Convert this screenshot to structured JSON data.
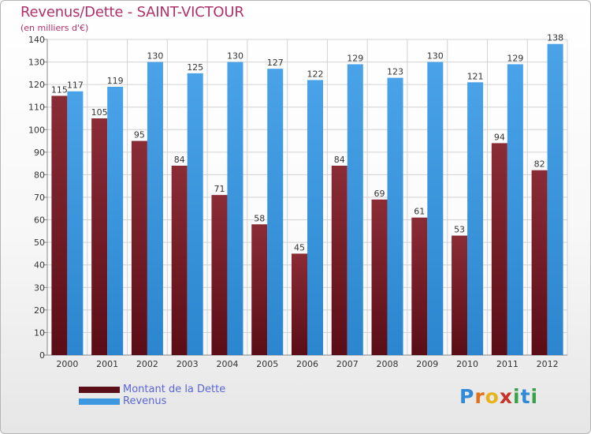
{
  "header": {
    "title": "Revenus/Dette - SAINT-VICTOUR",
    "subtitle": "(en milliers d'€)"
  },
  "chart_data": {
    "type": "bar",
    "title": "Revenus/Dette - SAINT-VICTOUR",
    "subtitle": "(en milliers d'€)",
    "categories": [
      "2000",
      "2001",
      "2002",
      "2003",
      "2004",
      "2005",
      "2006",
      "2007",
      "2008",
      "2009",
      "2010",
      "2011",
      "2012"
    ],
    "series": [
      {
        "name": "Montant de la Dette",
        "color": "#7a1f2a",
        "values": [
          115,
          105,
          95,
          84,
          71,
          58,
          45,
          84,
          69,
          61,
          53,
          94,
          82
        ]
      },
      {
        "name": "Revenus",
        "color": "#3d98e0",
        "values": [
          117,
          119,
          130,
          125,
          130,
          127,
          122,
          129,
          123,
          130,
          121,
          129,
          138
        ]
      }
    ],
    "ylim": [
      0,
      140
    ],
    "yticks": [
      0,
      10,
      20,
      30,
      40,
      50,
      60,
      70,
      80,
      90,
      100,
      110,
      120,
      130,
      140
    ],
    "grid": true,
    "legend_position": "bottom-left"
  },
  "legend": {
    "items": [
      {
        "label": "Montant de la Dette",
        "color": "#5a0f18"
      },
      {
        "label": "Revenus",
        "color": "#3d98e0"
      }
    ]
  },
  "logo": {
    "letters": [
      "P",
      "r",
      "o",
      "x",
      "i",
      "t",
      "i"
    ],
    "colors": [
      "#2f8ad8",
      "#e0701a",
      "#e8b21a",
      "#c8332a",
      "#3aa14a",
      "#2f8ad8",
      "#3aa14a"
    ]
  }
}
